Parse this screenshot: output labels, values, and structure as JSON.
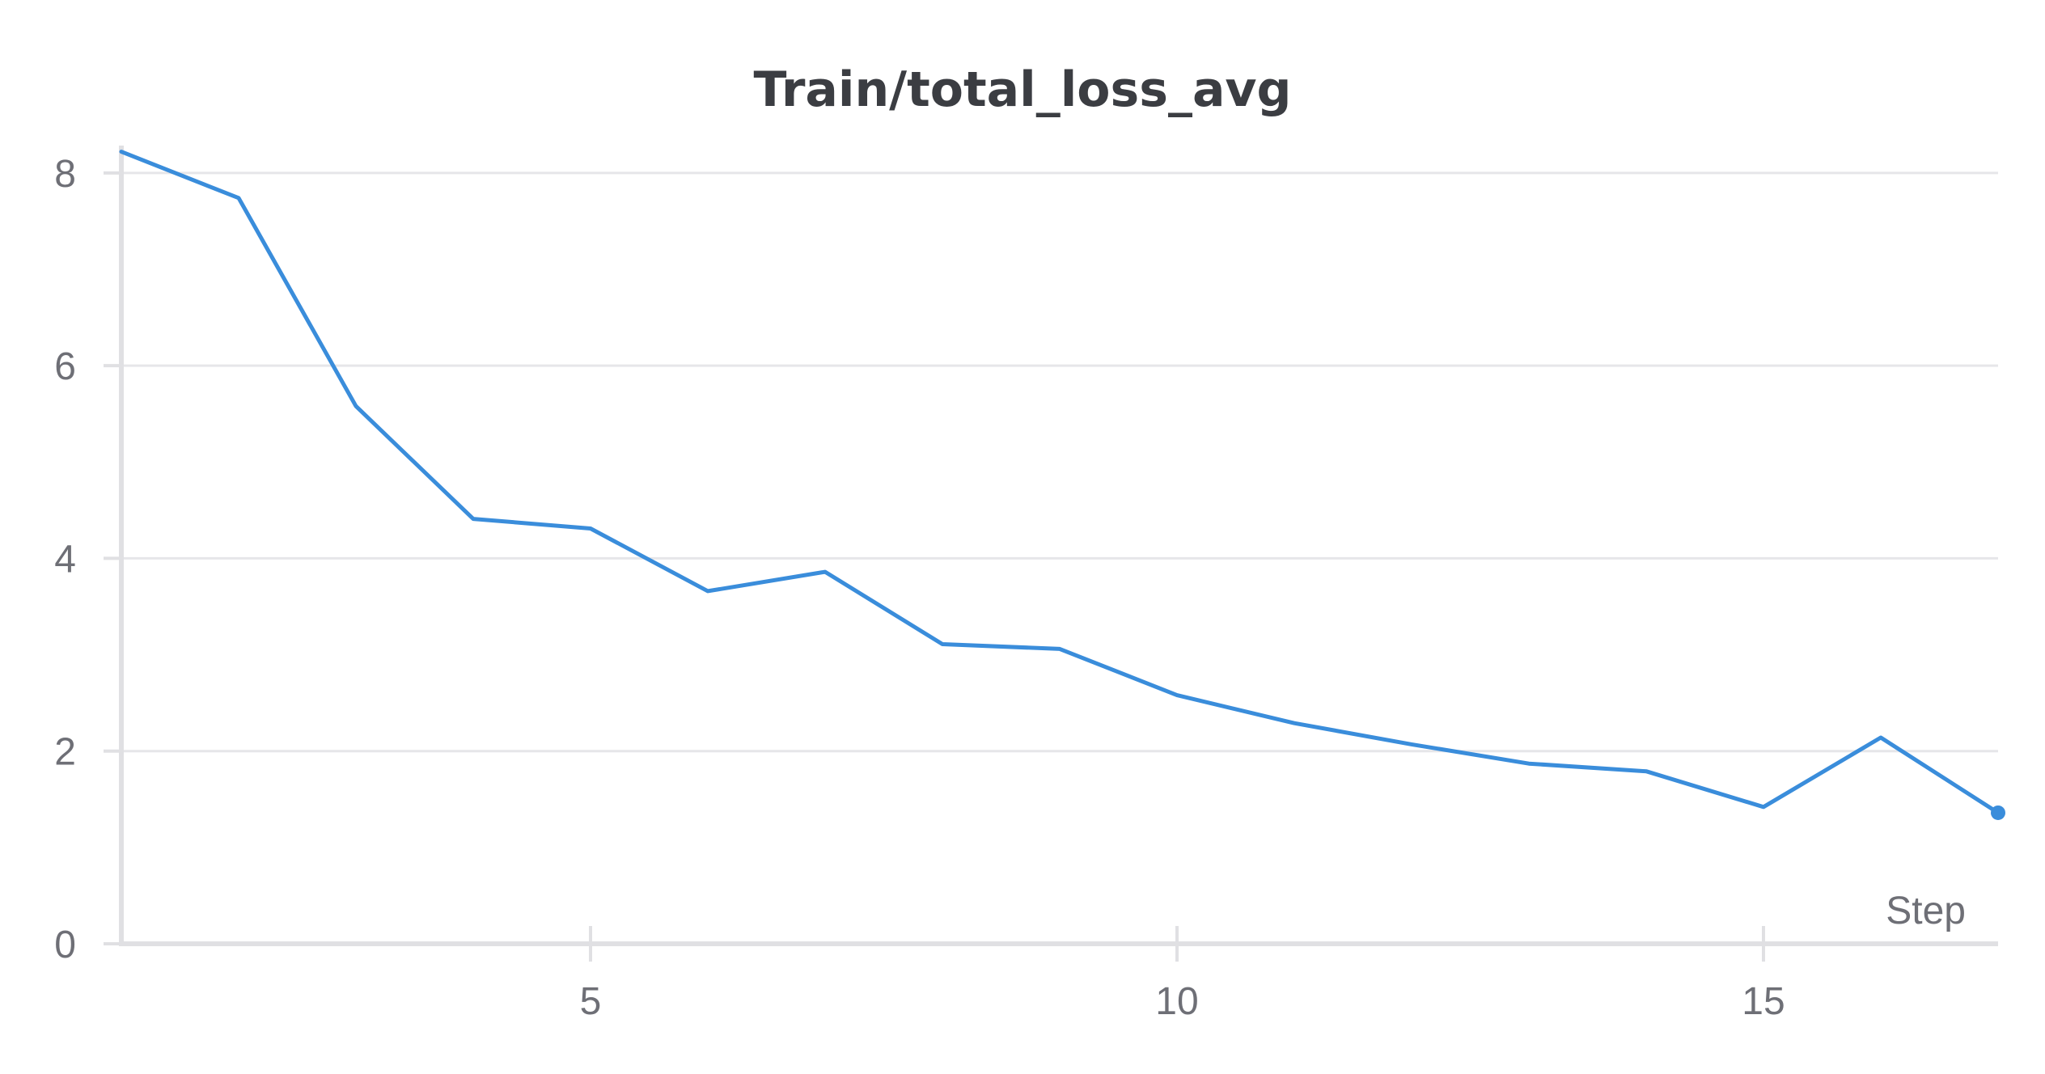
{
  "chart_data": {
    "type": "line",
    "title": "Train/total_loss_avg",
    "xlabel": "Step",
    "ylabel": "",
    "xlim": [
      1,
      17
    ],
    "ylim": [
      0,
      8.2
    ],
    "x_ticks": [
      5,
      10,
      15
    ],
    "y_ticks": [
      0,
      2,
      4,
      6,
      8
    ],
    "grid": true,
    "legend": "none",
    "series": [
      {
        "color": "#3a8ddb",
        "x": [
          1,
          2,
          3,
          4,
          5,
          6,
          7,
          8,
          9,
          10,
          11,
          12,
          13,
          14,
          15,
          16,
          17
        ],
        "values": [
          8.22,
          7.74,
          5.58,
          4.41,
          4.31,
          3.66,
          3.86,
          3.11,
          3.06,
          2.58,
          2.29,
          2.07,
          1.87,
          1.79,
          1.42,
          2.14,
          1.36
        ]
      }
    ]
  }
}
